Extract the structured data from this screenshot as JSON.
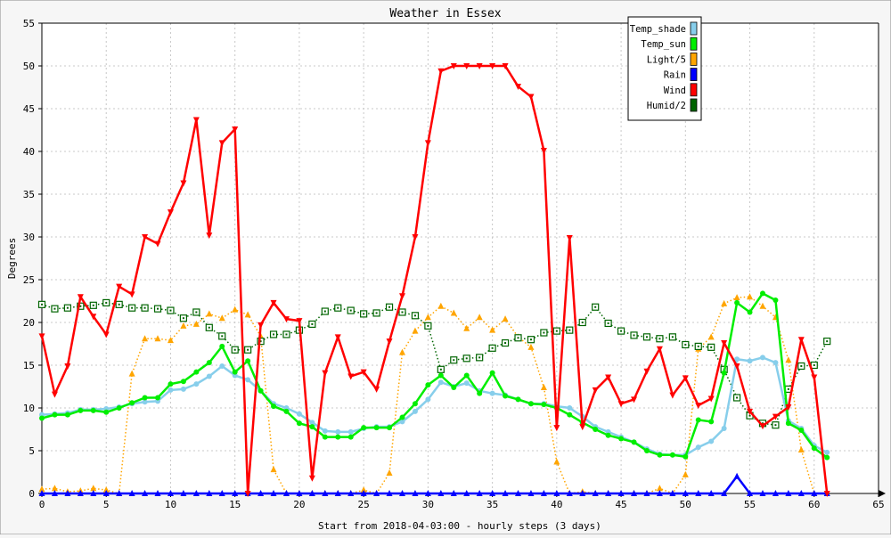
{
  "chart_data": {
    "type": "line",
    "title": "Weather in Essex",
    "xlabel": "Start from 2018-04-03:00 - hourly steps (3 days)",
    "ylabel": "Degrees",
    "xlim": [
      0,
      65
    ],
    "ylim": [
      0,
      55
    ],
    "x_ticks": [
      0,
      5,
      10,
      15,
      20,
      25,
      30,
      35,
      40,
      45,
      50,
      55,
      60,
      65
    ],
    "y_ticks": [
      0,
      5,
      10,
      15,
      20,
      25,
      30,
      35,
      40,
      45,
      50,
      55
    ],
    "grid": true,
    "legend_position": "top-right",
    "x": [
      0,
      1,
      2,
      3,
      4,
      5,
      6,
      7,
      8,
      9,
      10,
      11,
      12,
      13,
      14,
      15,
      16,
      17,
      18,
      19,
      20,
      21,
      22,
      23,
      24,
      25,
      26,
      27,
      28,
      29,
      30,
      31,
      32,
      33,
      34,
      35,
      36,
      37,
      38,
      39,
      40,
      41,
      42,
      43,
      44,
      45,
      46,
      47,
      48,
      49,
      50,
      51,
      52,
      53,
      54,
      55,
      56,
      57,
      58,
      59,
      60,
      61
    ],
    "series": [
      {
        "name": "Temp_shade",
        "color": "#87ceeb",
        "line": "solid",
        "marker": "dot",
        "values": [
          9.2,
          9.3,
          9.4,
          9.8,
          9.8,
          9.9,
          10.1,
          10.5,
          10.7,
          10.8,
          12.1,
          12.2,
          12.8,
          13.7,
          14.9,
          13.8,
          13.3,
          12.0,
          10.5,
          10.0,
          9.3,
          8.3,
          7.3,
          7.2,
          7.2,
          7.6,
          7.8,
          7.8,
          8.4,
          9.6,
          11.0,
          13.0,
          12.5,
          12.9,
          12.0,
          11.7,
          11.5,
          11.0,
          10.5,
          10.5,
          10.2,
          10.0,
          9.0,
          7.8,
          7.2,
          6.6,
          6.0,
          5.2,
          4.6,
          4.5,
          4.5,
          5.4,
          6.1,
          7.6,
          15.7,
          15.5,
          15.9,
          15.3,
          8.5,
          7.6,
          5.6,
          4.8
        ]
      },
      {
        "name": "Temp_sun",
        "color": "#00ee00",
        "line": "solid",
        "marker": "dot",
        "values": [
          8.8,
          9.2,
          9.2,
          9.7,
          9.7,
          9.5,
          10.0,
          10.6,
          11.2,
          11.2,
          12.8,
          13.1,
          14.2,
          15.3,
          17.2,
          14.2,
          15.5,
          12.0,
          10.2,
          9.6,
          8.2,
          7.8,
          6.6,
          6.6,
          6.6,
          7.7,
          7.7,
          7.7,
          8.9,
          10.5,
          12.7,
          13.8,
          12.4,
          13.8,
          11.7,
          14.1,
          11.4,
          11.0,
          10.5,
          10.4,
          10.0,
          9.2,
          8.3,
          7.5,
          6.8,
          6.4,
          6.0,
          5.0,
          4.5,
          4.5,
          4.3,
          8.6,
          8.4,
          14.1,
          22.3,
          21.2,
          23.4,
          22.6,
          8.2,
          7.4,
          5.3,
          4.2
        ]
      },
      {
        "name": "Light/5",
        "color": "#ffa500",
        "line": "dotted",
        "marker": "triangle-up",
        "values": [
          0.5,
          0.6,
          0.2,
          0.3,
          0.6,
          0.4,
          0.0,
          14.0,
          18.1,
          18.1,
          17.9,
          19.6,
          19.8,
          21.0,
          20.5,
          21.5,
          20.9,
          18.4,
          2.8,
          0.0,
          0.0,
          0.0,
          0.0,
          0.0,
          0.0,
          0.4,
          0.0,
          2.4,
          16.5,
          19.0,
          20.6,
          21.9,
          21.1,
          19.3,
          20.6,
          19.1,
          20.4,
          18.3,
          17.1,
          12.4,
          3.7,
          0.0,
          0.2,
          0.0,
          0.0,
          0.0,
          0.0,
          0.0,
          0.6,
          0.0,
          2.2,
          16.9,
          18.3,
          22.2,
          22.9,
          23.0,
          21.9,
          20.6,
          15.6,
          5.1,
          0.0,
          0.0
        ]
      },
      {
        "name": "Rain",
        "color": "#0000ff",
        "line": "solid",
        "marker": "triangle-up",
        "values": [
          0,
          0,
          0,
          0,
          0,
          0,
          0,
          0,
          0,
          0,
          0,
          0,
          0,
          0,
          0,
          0,
          0,
          0,
          0,
          0,
          0,
          0,
          0,
          0,
          0,
          0,
          0,
          0,
          0,
          0,
          0,
          0,
          0,
          0,
          0,
          0,
          0,
          0,
          0,
          0,
          0,
          0,
          0,
          0,
          0,
          0,
          0,
          0,
          0,
          0,
          0,
          0,
          0,
          0,
          2.0,
          0,
          0,
          0,
          0,
          0,
          0,
          0
        ]
      },
      {
        "name": "Wind",
        "color": "#ff0000",
        "line": "solid",
        "marker": "triangle-down",
        "values": [
          18.4,
          11.6,
          14.9,
          23.0,
          20.7,
          18.6,
          24.2,
          23.3,
          30.0,
          29.2,
          32.9,
          36.3,
          43.7,
          30.2,
          41.0,
          42.6,
          0.0,
          19.7,
          22.3,
          20.4,
          20.2,
          1.8,
          14.1,
          18.3,
          13.7,
          14.2,
          12.2,
          17.8,
          23.1,
          30.0,
          41.0,
          49.4,
          50.0,
          50.0,
          50.0,
          50.0,
          50.0,
          47.6,
          46.4,
          40.1,
          7.7,
          29.9,
          7.8,
          12.1,
          13.6,
          10.5,
          11.0,
          14.3,
          16.9,
          11.5,
          13.5,
          10.3,
          11.1,
          17.6,
          14.9,
          9.6,
          7.9,
          9.0,
          10.1,
          18.0,
          13.6,
          0.0
        ]
      },
      {
        "name": "Humid/2",
        "color": "#006400",
        "line": "dotted",
        "marker": "square",
        "values": [
          22.1,
          21.6,
          21.7,
          21.9,
          22.0,
          22.3,
          22.1,
          21.7,
          21.7,
          21.6,
          21.4,
          20.5,
          21.2,
          19.4,
          18.4,
          16.8,
          16.8,
          17.8,
          18.6,
          18.6,
          19.1,
          19.8,
          21.3,
          21.7,
          21.4,
          21.0,
          21.1,
          21.8,
          21.2,
          20.8,
          19.6,
          14.5,
          15.6,
          15.8,
          15.9,
          17.0,
          17.6,
          18.2,
          18.0,
          18.8,
          19.0,
          19.1,
          20.0,
          21.8,
          19.9,
          19.0,
          18.5,
          18.3,
          18.1,
          18.3,
          17.4,
          17.2,
          17.1,
          14.5,
          11.2,
          9.1,
          8.2,
          8.0,
          12.2,
          14.9,
          15.0,
          17.8
        ]
      }
    ]
  }
}
